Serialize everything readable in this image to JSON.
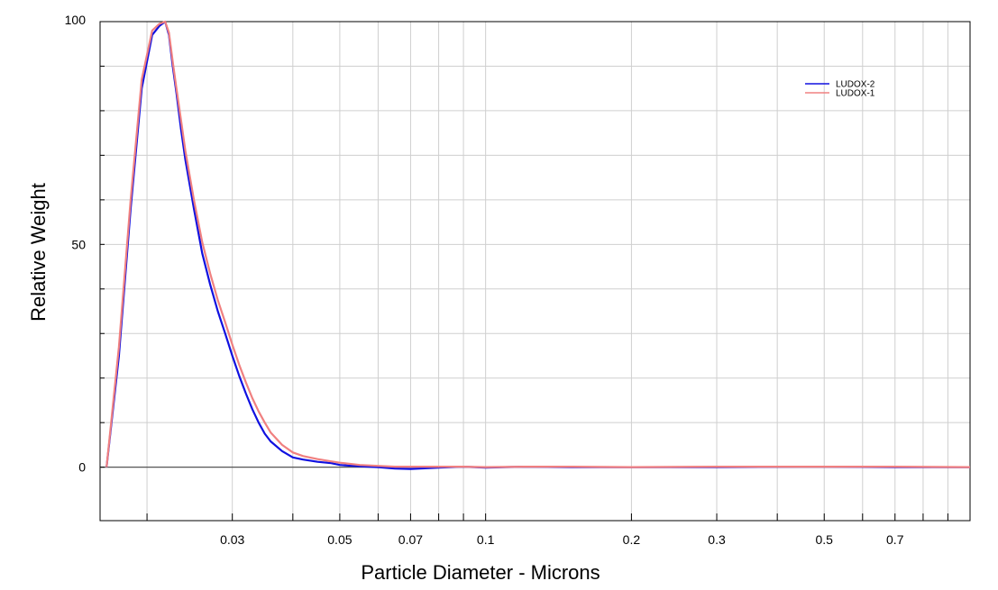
{
  "chart_data": {
    "type": "line",
    "title": "",
    "xlabel": "Particle Diameter  -  Microns",
    "ylabel": "Relative Weight",
    "x_scale": "log",
    "xlim": [
      0.016,
      1.0
    ],
    "ylim": [
      -12,
      100
    ],
    "x_tick_labels": [
      {
        "value": 0.03,
        "label": "0.03"
      },
      {
        "value": 0.05,
        "label": "0.05"
      },
      {
        "value": 0.07,
        "label": "0.07"
      },
      {
        "value": 0.1,
        "label": "0.1"
      },
      {
        "value": 0.2,
        "label": "0.2"
      },
      {
        "value": 0.3,
        "label": "0.3"
      },
      {
        "value": 0.5,
        "label": "0.5"
      },
      {
        "value": 0.7,
        "label": "0.7"
      }
    ],
    "x_gridlines": [
      0.02,
      0.03,
      0.04,
      0.05,
      0.06,
      0.07,
      0.08,
      0.09,
      0.1,
      0.2,
      0.3,
      0.4,
      0.5,
      0.6,
      0.7,
      0.8,
      0.9
    ],
    "y_tick_labels": [
      {
        "value": 100,
        "label": "100"
      },
      {
        "value": 50,
        "label": "50"
      },
      {
        "value": 0,
        "label": "0"
      }
    ],
    "y_gridlines": [
      90,
      80,
      70,
      60,
      50,
      40,
      30,
      20,
      10
    ],
    "grid": true,
    "legend_position": "top-right",
    "series": [
      {
        "name": "LUDOX-2",
        "color": "#1010e0",
        "x": [
          0.0165,
          0.0175,
          0.0185,
          0.0195,
          0.0205,
          0.0212,
          0.0218,
          0.0222,
          0.0226,
          0.023,
          0.0235,
          0.024,
          0.025,
          0.026,
          0.027,
          0.028,
          0.029,
          0.03,
          0.031,
          0.032,
          0.033,
          0.034,
          0.035,
          0.036,
          0.038,
          0.04,
          0.042,
          0.045,
          0.048,
          0.05,
          0.055,
          0.06,
          0.065,
          0.07,
          0.08,
          0.09,
          0.1,
          0.12,
          0.15,
          0.2,
          0.3,
          0.5,
          0.7,
          1.0
        ],
        "y": [
          0,
          25,
          58,
          85,
          97,
          99,
          100,
          97,
          90,
          84,
          76,
          69,
          58,
          48,
          41,
          35,
          30,
          25,
          20.5,
          16.5,
          13,
          10,
          7.5,
          5.8,
          3.6,
          2.2,
          1.7,
          1.2,
          0.9,
          0.5,
          0.2,
          0.0,
          -0.3,
          -0.4,
          -0.1,
          0.1,
          -0.1,
          0.1,
          0.0,
          0.0,
          0.0,
          0.1,
          0.0,
          0.0
        ]
      },
      {
        "name": "LUDOX-1",
        "color": "#f08080",
        "x": [
          0.0165,
          0.0175,
          0.0185,
          0.0195,
          0.0205,
          0.0212,
          0.0218,
          0.0222,
          0.0226,
          0.023,
          0.0235,
          0.024,
          0.025,
          0.026,
          0.027,
          0.028,
          0.029,
          0.03,
          0.031,
          0.032,
          0.033,
          0.034,
          0.035,
          0.036,
          0.038,
          0.04,
          0.042,
          0.045,
          0.048,
          0.05,
          0.055,
          0.06,
          0.065,
          0.07,
          0.08,
          0.09,
          0.1,
          0.12,
          0.15,
          0.2,
          0.3,
          0.5,
          0.7,
          1.0
        ],
        "y": [
          0,
          27,
          60,
          87,
          98,
          99.5,
          100,
          97.5,
          91,
          85,
          78,
          71,
          60,
          50.5,
          43.5,
          37.5,
          32.5,
          27.5,
          23,
          19,
          15.5,
          12.5,
          10,
          7.8,
          5.0,
          3.3,
          2.5,
          1.8,
          1.3,
          1.0,
          0.5,
          0.3,
          0.1,
          0.1,
          0.1,
          0.1,
          0.0,
          0.1,
          0.1,
          0.0,
          0.1,
          0.1,
          0.1,
          0.0
        ]
      }
    ]
  }
}
